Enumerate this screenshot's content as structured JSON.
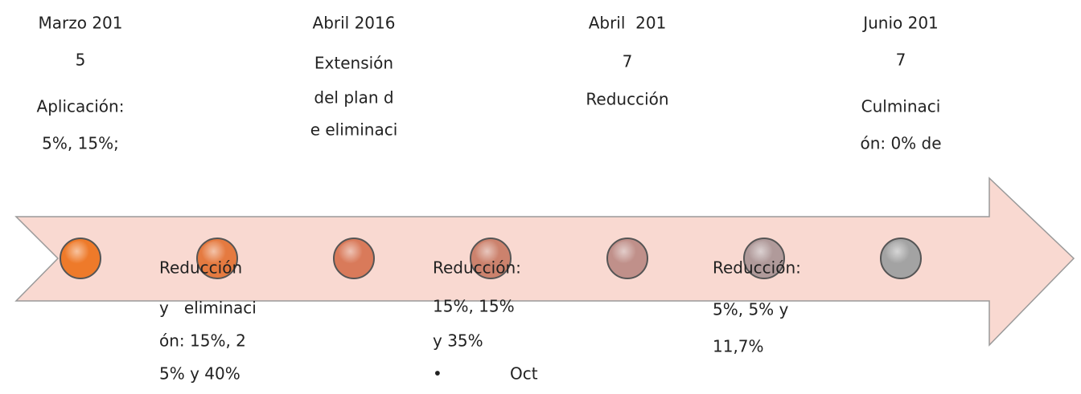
{
  "top_events": [
    {
      "lines": [
        "Marzo 201",
        "5",
        "Aplicación:",
        "5%, 15%;"
      ]
    },
    {
      "lines": [
        "Abril 2016",
        "Extensión",
        "del plan d",
        "e eliminaci"
      ]
    },
    {
      "lines": [
        "Abril  201",
        "7",
        "Reducción"
      ]
    },
    {
      "lines": [
        "Junio 201",
        "7",
        "Culminaci",
        "ón: 0% de"
      ]
    }
  ],
  "bottom_events": [
    {
      "lines": [
        "Reducción",
        "y   eliminaci",
        "ón: 15%, 2",
        "5% y 40%"
      ]
    },
    {
      "lines": [
        "Reducción:",
        "15%, 15%",
        "y 35%",
        "•",
        "Oct"
      ]
    },
    {
      "lines": [
        "Reducción:",
        "5%, 5% y",
        "11,7%"
      ]
    }
  ]
}
